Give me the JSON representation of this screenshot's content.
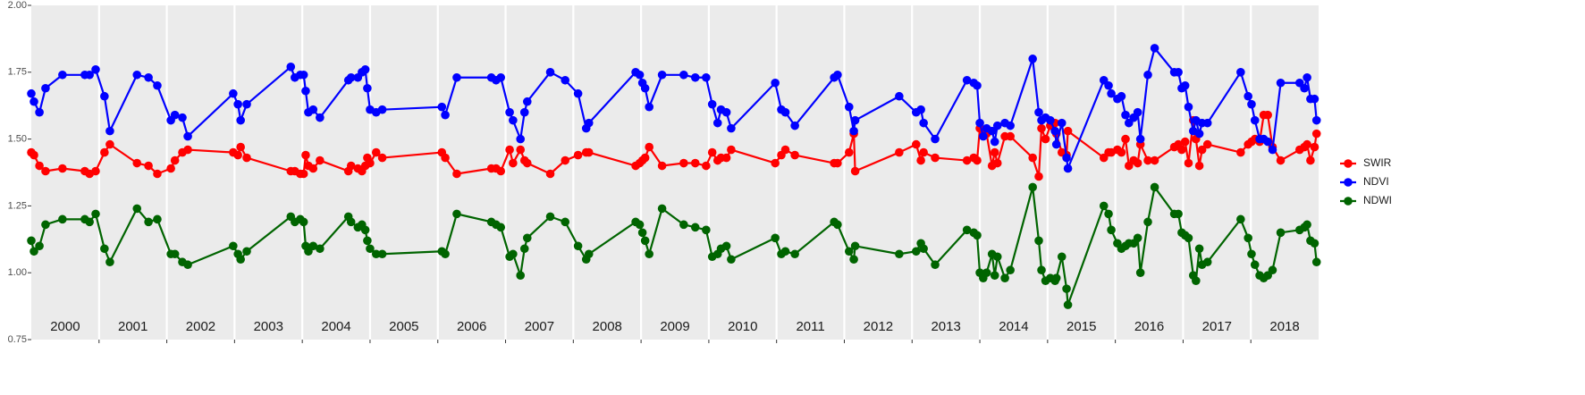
{
  "chart_data": {
    "type": "line",
    "x": [
      2000.0,
      2000.04,
      2000.12,
      2000.21,
      2000.46,
      2000.79,
      2000.86,
      2000.95,
      2001.08,
      2001.16,
      2001.56,
      2001.73,
      2001.86,
      2002.06,
      2002.12,
      2002.23,
      2002.31,
      2002.98,
      2003.05,
      2003.09,
      2003.18,
      2003.83,
      2003.89,
      2003.97,
      2004.02,
      2004.05,
      2004.09,
      2004.16,
      2004.26,
      2004.68,
      2004.72,
      2004.82,
      2004.88,
      2004.93,
      2004.96,
      2005.0,
      2005.09,
      2005.18,
      2006.06,
      2006.11,
      2006.28,
      2006.79,
      2006.86,
      2006.93,
      2007.06,
      2007.11,
      2007.22,
      2007.28,
      2007.32,
      2007.66,
      2007.88,
      2008.07,
      2008.19,
      2008.23,
      2008.92,
      2008.98,
      2009.02,
      2009.06,
      2009.12,
      2009.31,
      2009.63,
      2009.8,
      2009.96,
      2010.05,
      2010.13,
      2010.18,
      2010.26,
      2010.33,
      2010.98,
      2011.07,
      2011.13,
      2011.27,
      2011.85,
      2011.9,
      2012.07,
      2012.14,
      2012.16,
      2012.81,
      2013.06,
      2013.13,
      2013.17,
      2013.34,
      2013.81,
      2013.91,
      2013.96,
      2014.0,
      2014.05,
      2014.1,
      2014.18,
      2014.22,
      2014.26,
      2014.37,
      2014.45,
      2014.78,
      2014.87,
      2014.91,
      2014.97,
      2015.04,
      2015.11,
      2015.13,
      2015.21,
      2015.28,
      2015.3,
      2015.83,
      2015.9,
      2015.94,
      2016.03,
      2016.09,
      2016.15,
      2016.2,
      2016.27,
      2016.33,
      2016.37,
      2016.48,
      2016.58,
      2016.87,
      2016.93,
      2016.98,
      2017.03,
      2017.08,
      2017.15,
      2017.19,
      2017.24,
      2017.28,
      2017.36,
      2017.85,
      2017.96,
      2018.01,
      2018.06,
      2018.13,
      2018.19,
      2018.25,
      2018.32,
      2018.44,
      2018.72,
      2018.79,
      2018.83,
      2018.88,
      2018.94,
      2018.97
    ],
    "series": [
      {
        "name": "SWIR",
        "color": "#ff0000",
        "values": [
          1.45,
          1.44,
          1.4,
          1.38,
          1.39,
          1.38,
          1.37,
          1.38,
          1.45,
          1.48,
          1.41,
          1.4,
          1.37,
          1.39,
          1.42,
          1.45,
          1.46,
          1.45,
          1.44,
          1.47,
          1.43,
          1.38,
          1.38,
          1.37,
          1.37,
          1.44,
          1.4,
          1.39,
          1.42,
          1.38,
          1.4,
          1.39,
          1.38,
          1.4,
          1.43,
          1.41,
          1.45,
          1.43,
          1.45,
          1.43,
          1.37,
          1.39,
          1.39,
          1.38,
          1.46,
          1.41,
          1.46,
          1.42,
          1.41,
          1.37,
          1.42,
          1.44,
          1.45,
          1.45,
          1.4,
          1.41,
          1.42,
          1.43,
          1.47,
          1.4,
          1.41,
          1.41,
          1.4,
          1.45,
          1.42,
          1.43,
          1.43,
          1.46,
          1.41,
          1.44,
          1.46,
          1.44,
          1.41,
          1.41,
          1.45,
          1.52,
          1.38,
          1.45,
          1.48,
          1.42,
          1.45,
          1.43,
          1.42,
          1.43,
          1.42,
          1.54,
          1.52,
          1.52,
          1.4,
          1.45,
          1.41,
          1.51,
          1.51,
          1.43,
          1.36,
          1.54,
          1.5,
          1.55,
          1.56,
          1.52,
          1.45,
          1.44,
          1.53,
          1.43,
          1.45,
          1.45,
          1.46,
          1.45,
          1.5,
          1.4,
          1.42,
          1.41,
          1.48,
          1.42,
          1.42,
          1.47,
          1.48,
          1.46,
          1.49,
          1.41,
          1.57,
          1.5,
          1.4,
          1.46,
          1.48,
          1.45,
          1.48,
          1.49,
          1.5,
          1.49,
          1.59,
          1.59,
          1.47,
          1.42,
          1.46,
          1.47,
          1.48,
          1.42,
          1.47,
          1.52
        ]
      },
      {
        "name": "NDVI",
        "color": "#0000ff",
        "values": [
          1.67,
          1.64,
          1.6,
          1.69,
          1.74,
          1.74,
          1.74,
          1.76,
          1.66,
          1.53,
          1.74,
          1.73,
          1.7,
          1.57,
          1.59,
          1.58,
          1.51,
          1.67,
          1.63,
          1.57,
          1.63,
          1.77,
          1.73,
          1.74,
          1.74,
          1.68,
          1.6,
          1.61,
          1.58,
          1.72,
          1.73,
          1.73,
          1.75,
          1.76,
          1.69,
          1.61,
          1.6,
          1.61,
          1.62,
          1.59,
          1.73,
          1.73,
          1.72,
          1.73,
          1.6,
          1.57,
          1.5,
          1.6,
          1.64,
          1.75,
          1.72,
          1.67,
          1.54,
          1.56,
          1.75,
          1.74,
          1.71,
          1.69,
          1.62,
          1.74,
          1.74,
          1.73,
          1.73,
          1.63,
          1.56,
          1.61,
          1.6,
          1.54,
          1.71,
          1.61,
          1.6,
          1.55,
          1.73,
          1.74,
          1.62,
          1.53,
          1.57,
          1.66,
          1.6,
          1.61,
          1.56,
          1.5,
          1.72,
          1.71,
          1.7,
          1.56,
          1.51,
          1.54,
          1.53,
          1.49,
          1.55,
          1.56,
          1.55,
          1.8,
          1.6,
          1.57,
          1.58,
          1.57,
          1.53,
          1.48,
          1.56,
          1.43,
          1.39,
          1.72,
          1.7,
          1.67,
          1.65,
          1.66,
          1.59,
          1.56,
          1.58,
          1.6,
          1.5,
          1.74,
          1.84,
          1.75,
          1.75,
          1.69,
          1.7,
          1.62,
          1.53,
          1.57,
          1.52,
          1.56,
          1.56,
          1.75,
          1.66,
          1.63,
          1.57,
          1.5,
          1.5,
          1.49,
          1.46,
          1.71,
          1.71,
          1.69,
          1.73,
          1.65,
          1.65,
          1.57
        ]
      },
      {
        "name": "NDWI",
        "color": "#006400",
        "values": [
          1.12,
          1.08,
          1.1,
          1.18,
          1.2,
          1.2,
          1.19,
          1.22,
          1.09,
          1.04,
          1.24,
          1.19,
          1.2,
          1.07,
          1.07,
          1.04,
          1.03,
          1.1,
          1.07,
          1.05,
          1.08,
          1.21,
          1.19,
          1.2,
          1.19,
          1.1,
          1.08,
          1.1,
          1.09,
          1.21,
          1.19,
          1.17,
          1.18,
          1.16,
          1.12,
          1.09,
          1.07,
          1.07,
          1.08,
          1.07,
          1.22,
          1.19,
          1.18,
          1.17,
          1.06,
          1.07,
          0.99,
          1.09,
          1.13,
          1.21,
          1.19,
          1.1,
          1.05,
          1.07,
          1.19,
          1.18,
          1.15,
          1.12,
          1.07,
          1.24,
          1.18,
          1.17,
          1.16,
          1.06,
          1.07,
          1.09,
          1.1,
          1.05,
          1.13,
          1.07,
          1.08,
          1.07,
          1.19,
          1.18,
          1.08,
          1.05,
          1.1,
          1.07,
          1.08,
          1.11,
          1.09,
          1.03,
          1.16,
          1.15,
          1.14,
          1.0,
          0.98,
          1.0,
          1.07,
          0.99,
          1.06,
          0.98,
          1.01,
          1.32,
          1.12,
          1.01,
          0.97,
          0.98,
          0.97,
          0.98,
          1.06,
          0.94,
          0.88,
          1.25,
          1.22,
          1.16,
          1.11,
          1.09,
          1.1,
          1.11,
          1.11,
          1.13,
          1.0,
          1.19,
          1.32,
          1.22,
          1.22,
          1.15,
          1.14,
          1.13,
          0.99,
          0.97,
          1.09,
          1.03,
          1.04,
          1.2,
          1.13,
          1.07,
          1.03,
          0.99,
          0.98,
          0.99,
          1.01,
          1.15,
          1.16,
          1.17,
          1.18,
          1.12,
          1.11,
          1.04
        ]
      }
    ],
    "xlim": [
      2000,
      2019
    ],
    "xticks": [
      {
        "value": 2000.5,
        "label": "2000"
      },
      {
        "value": 2001.5,
        "label": "2001"
      },
      {
        "value": 2002.5,
        "label": "2002"
      },
      {
        "value": 2003.5,
        "label": "2003"
      },
      {
        "value": 2004.5,
        "label": "2004"
      },
      {
        "value": 2005.5,
        "label": "2005"
      },
      {
        "value": 2006.5,
        "label": "2006"
      },
      {
        "value": 2007.5,
        "label": "2007"
      },
      {
        "value": 2008.5,
        "label": "2008"
      },
      {
        "value": 2009.5,
        "label": "2009"
      },
      {
        "value": 2010.5,
        "label": "2010"
      },
      {
        "value": 2011.5,
        "label": "2011"
      },
      {
        "value": 2012.5,
        "label": "2012"
      },
      {
        "value": 2013.5,
        "label": "2013"
      },
      {
        "value": 2014.5,
        "label": "2014"
      },
      {
        "value": 2015.5,
        "label": "2015"
      },
      {
        "value": 2016.5,
        "label": "2016"
      },
      {
        "value": 2017.5,
        "label": "2017"
      },
      {
        "value": 2018.5,
        "label": "2018"
      }
    ],
    "xgrid": [
      2001,
      2002,
      2003,
      2004,
      2005,
      2006,
      2007,
      2008,
      2009,
      2010,
      2011,
      2012,
      2013,
      2014,
      2015,
      2016,
      2017,
      2018
    ],
    "ylim": [
      0.75,
      2
    ],
    "yticks": [
      0.75,
      {
        "value": 1,
        "label": "1.00"
      },
      1.25,
      {
        "value": 1.5,
        "label": "1.50"
      },
      1.75,
      {
        "value": 2,
        "label": "2.00"
      }
    ],
    "legend": "right"
  }
}
